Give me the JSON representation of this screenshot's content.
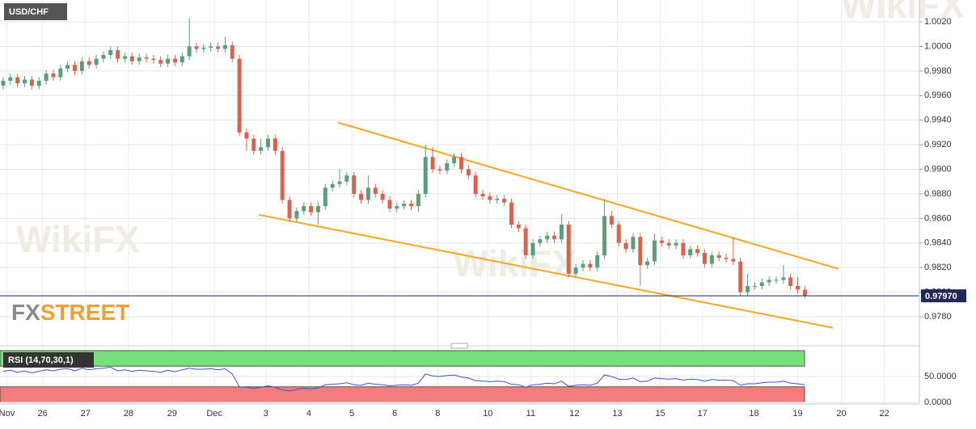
{
  "chart_data": [
    {
      "type": "candlestick",
      "title": "USD/CHF",
      "open": [
        0.9968,
        0.9972,
        0.9975,
        0.997,
        0.9973,
        0.9968,
        0.9972,
        0.9978,
        0.9975,
        0.9982,
        0.9985,
        0.998,
        0.9988,
        0.9985,
        0.999,
        0.9993,
        0.9997,
        0.999,
        0.9992,
        0.9988,
        0.9991,
        0.999,
        0.9989,
        0.9986,
        0.999,
        0.9987,
        0.9992,
        1.0,
        0.9998,
        0.9999,
        1.0,
        0.9998,
        1.0001,
        0.999,
        0.993,
        0.9925,
        0.9915,
        0.9918,
        0.9925,
        0.9915,
        0.9875,
        0.986,
        0.9866,
        0.987,
        0.9865,
        0.987,
        0.9885,
        0.9888,
        0.989,
        0.9895,
        0.988,
        0.9875,
        0.9885,
        0.988,
        0.9875,
        0.9868,
        0.987,
        0.9872,
        0.987,
        0.988,
        0.991,
        0.99,
        0.9899,
        0.9905,
        0.991,
        0.99,
        0.9895,
        0.988,
        0.9878,
        0.9875,
        0.9876,
        0.9873,
        0.9855,
        0.9852,
        0.983,
        0.984,
        0.9843,
        0.9846,
        0.9843,
        0.9855,
        0.9815,
        0.982,
        0.9823,
        0.982,
        0.983,
        0.9862,
        0.9855,
        0.984,
        0.9835,
        0.9845,
        0.9822,
        0.9825,
        0.9842,
        0.984,
        0.9838,
        0.984,
        0.983,
        0.9835,
        0.9832,
        0.9823,
        0.983,
        0.9828,
        0.9827,
        0.9825,
        0.98,
        0.9805,
        0.9805,
        0.9808,
        0.981,
        0.981,
        0.9812,
        0.9805,
        0.9802
      ],
      "high": [
        0.9975,
        0.9978,
        0.9978,
        0.9976,
        0.9976,
        0.9975,
        0.9981,
        0.9981,
        0.9985,
        0.9988,
        0.9988,
        0.9991,
        0.9991,
        0.9993,
        0.9996,
        1.0,
        1.0,
        0.9995,
        0.9995,
        0.9994,
        0.9994,
        0.9993,
        0.9992,
        0.9993,
        0.9993,
        0.9995,
        1.0023,
        1.0003,
        1.0002,
        1.0003,
        1.0003,
        1.0008,
        1.0004,
        0.9993,
        0.9933,
        0.9928,
        0.9925,
        0.9928,
        0.9928,
        0.9918,
        0.9878,
        0.9869,
        0.9873,
        0.9873,
        0.9873,
        0.9888,
        0.9891,
        0.99,
        0.9898,
        0.9898,
        0.9883,
        0.9895,
        0.9888,
        0.9883,
        0.9878,
        0.9873,
        0.9875,
        0.9875,
        0.9883,
        0.992,
        0.9918,
        0.9903,
        0.9908,
        0.9913,
        0.9913,
        0.9903,
        0.9898,
        0.9883,
        0.9881,
        0.9879,
        0.9879,
        0.9876,
        0.9858,
        0.9855,
        0.9843,
        0.9846,
        0.9849,
        0.9849,
        0.9863,
        0.9858,
        0.9823,
        0.9826,
        0.9826,
        0.9833,
        0.9876,
        0.9866,
        0.9858,
        0.9843,
        0.9848,
        0.9848,
        0.9828,
        0.9848,
        0.9845,
        0.9843,
        0.9843,
        0.9843,
        0.9838,
        0.9838,
        0.9835,
        0.9833,
        0.9833,
        0.9831,
        0.9845,
        0.9828,
        0.9815,
        0.9808,
        0.9811,
        0.9813,
        0.9813,
        0.9822,
        0.9815,
        0.9812,
        0.9805
      ],
      "low": [
        0.9965,
        0.9969,
        0.9967,
        0.9967,
        0.9965,
        0.9965,
        0.9969,
        0.9972,
        0.9972,
        0.9979,
        0.9977,
        0.9977,
        0.9982,
        0.9982,
        0.9987,
        0.999,
        0.9987,
        0.9987,
        0.9985,
        0.9985,
        0.9987,
        0.9986,
        0.9983,
        0.9983,
        0.9984,
        0.9984,
        0.9989,
        0.9995,
        0.9995,
        0.9996,
        0.9995,
        0.9995,
        0.9987,
        0.9927,
        0.9915,
        0.9912,
        0.9912,
        0.9915,
        0.9912,
        0.9872,
        0.9857,
        0.9857,
        0.9863,
        0.9862,
        0.9855,
        0.9867,
        0.9882,
        0.9885,
        0.9887,
        0.9877,
        0.9872,
        0.9872,
        0.9877,
        0.9872,
        0.9865,
        0.9865,
        0.9867,
        0.9867,
        0.9865,
        0.9877,
        0.9897,
        0.9896,
        0.9896,
        0.9902,
        0.9897,
        0.9892,
        0.9877,
        0.9875,
        0.9872,
        0.9872,
        0.987,
        0.9852,
        0.9849,
        0.9827,
        0.9827,
        0.9837,
        0.984,
        0.984,
        0.984,
        0.9812,
        0.9812,
        0.9817,
        0.9817,
        0.9817,
        0.9827,
        0.9852,
        0.9837,
        0.9832,
        0.9832,
        0.9805,
        0.9819,
        0.9822,
        0.9837,
        0.9835,
        0.9835,
        0.9827,
        0.9827,
        0.9829,
        0.982,
        0.982,
        0.9825,
        0.9824,
        0.9822,
        0.9797,
        0.9797,
        0.9802,
        0.9802,
        0.9805,
        0.9807,
        0.9807,
        0.9802,
        0.9799,
        0.9795
      ],
      "close": [
        0.9972,
        0.9975,
        0.997,
        0.9973,
        0.9968,
        0.9972,
        0.9978,
        0.9975,
        0.9982,
        0.9985,
        0.998,
        0.9988,
        0.9985,
        0.999,
        0.9993,
        0.9997,
        0.999,
        0.9992,
        0.9988,
        0.9991,
        0.999,
        0.9989,
        0.9986,
        0.999,
        0.9987,
        0.9992,
        1.0,
        0.9998,
        0.9999,
        1.0,
        0.9998,
        1.0001,
        0.999,
        0.993,
        0.9925,
        0.9915,
        0.9918,
        0.9925,
        0.9915,
        0.9875,
        0.986,
        0.9866,
        0.987,
        0.9865,
        0.987,
        0.9885,
        0.9888,
        0.989,
        0.9895,
        0.988,
        0.9875,
        0.9885,
        0.988,
        0.9875,
        0.9868,
        0.987,
        0.9872,
        0.987,
        0.988,
        0.991,
        0.99,
        0.9899,
        0.9905,
        0.991,
        0.99,
        0.9895,
        0.988,
        0.9878,
        0.9875,
        0.9876,
        0.9873,
        0.9855,
        0.9852,
        0.983,
        0.984,
        0.9843,
        0.9846,
        0.9843,
        0.9855,
        0.9815,
        0.982,
        0.9823,
        0.982,
        0.983,
        0.9862,
        0.9855,
        0.984,
        0.9835,
        0.9845,
        0.9822,
        0.9825,
        0.9842,
        0.984,
        0.9838,
        0.984,
        0.983,
        0.9835,
        0.9832,
        0.9823,
        0.983,
        0.9828,
        0.9827,
        0.9825,
        0.98,
        0.9805,
        0.9805,
        0.9808,
        0.981,
        0.981,
        0.9812,
        0.9805,
        0.9802,
        0.9797
      ],
      "up_color": "#5b9e7f",
      "down_color": "#d9634f",
      "xlim": [
        -0.45,
        128.0
      ],
      "xticks": [
        {
          "value": 0.5,
          "label": "Nov"
        },
        {
          "value": 5.5,
          "label": "26"
        },
        {
          "value": 11.5,
          "label": "27"
        },
        {
          "value": 17.5,
          "label": "28"
        },
        {
          "value": 23.6,
          "label": "29"
        },
        {
          "value": 29.5,
          "label": "Dec"
        },
        {
          "value": 36.7,
          "label": "3"
        },
        {
          "value": 42.7,
          "label": "4"
        },
        {
          "value": 48.7,
          "label": "5"
        },
        {
          "value": 54.7,
          "label": "6"
        },
        {
          "value": 60.7,
          "label": "8"
        },
        {
          "value": 67.7,
          "label": "10"
        },
        {
          "value": 73.7,
          "label": "11"
        },
        {
          "value": 79.8,
          "label": "12"
        },
        {
          "value": 85.8,
          "label": "13"
        },
        {
          "value": 91.8,
          "label": "15"
        },
        {
          "value": 97.7,
          "label": "17"
        },
        {
          "value": 104.9,
          "label": "18"
        },
        {
          "value": 111.0,
          "label": "19"
        },
        {
          "value": 117.1,
          "label": "20"
        },
        {
          "value": 123.1,
          "label": "22"
        }
      ],
      "ylim": [
        0.97583,
        1.00378
      ],
      "yticks": [
        {
          "value": 1.002,
          "label": "1.0020"
        },
        {
          "value": 1.0,
          "label": "1.0000"
        },
        {
          "value": 0.998,
          "label": "0.9980"
        },
        {
          "value": 0.996,
          "label": "0.9960"
        },
        {
          "value": 0.994,
          "label": "0.9940"
        },
        {
          "value": 0.992,
          "label": "0.9920"
        },
        {
          "value": 0.99,
          "label": "0.9900"
        },
        {
          "value": 0.988,
          "label": "0.9880"
        },
        {
          "value": 0.986,
          "label": "0.9860"
        },
        {
          "value": 0.984,
          "label": "0.9840"
        },
        {
          "value": 0.982,
          "label": "0.9820"
        },
        {
          "value": 0.98,
          "label": "0.9800"
        },
        {
          "value": 0.978,
          "label": "0.9780"
        }
      ],
      "grid": true,
      "last_price": {
        "value": 0.9797,
        "label": "0.97970"
      },
      "trendlines": [
        {
          "x": [
            46.8,
            116.7
          ],
          "y": [
            0.9938,
            0.9819
          ]
        },
        {
          "x": [
            35.7,
            115.9
          ],
          "y": [
            0.9863,
            0.9771
          ]
        }
      ],
      "trendline_color": "#f5a623",
      "logo_fx": "FX",
      "logo_street": "STREET",
      "watermark": "WikiFX"
    },
    {
      "type": "line",
      "title": "RSI (14,70,30,1)",
      "color": "#3a55c8",
      "values": [
        60,
        62,
        58,
        61,
        57,
        60,
        63,
        61,
        64,
        65,
        61,
        66,
        63,
        65,
        66,
        68,
        61,
        63,
        60,
        62,
        61,
        60,
        58,
        62,
        59,
        63,
        66,
        64,
        64,
        65,
        63,
        65,
        55,
        30,
        29,
        27,
        29,
        32,
        29,
        24,
        22,
        25,
        27,
        26,
        28,
        34,
        35,
        36,
        38,
        34,
        33,
        37,
        35,
        34,
        32,
        33,
        34,
        33,
        37,
        55,
        51,
        50,
        52,
        53,
        49,
        47,
        42,
        41,
        40,
        41,
        40,
        35,
        34,
        29,
        34,
        35,
        37,
        36,
        41,
        31,
        33,
        34,
        33,
        37,
        53,
        50,
        45,
        44,
        47,
        40,
        41,
        47,
        46,
        45,
        46,
        43,
        45,
        44,
        41,
        44,
        43,
        43,
        42,
        33,
        36,
        36,
        38,
        39,
        39,
        41,
        37,
        36,
        34
      ],
      "ylim": [
        0,
        100
      ],
      "yticks": [
        {
          "value": 50,
          "label": "50.0000"
        },
        {
          "value": 0,
          "label": "0.0000"
        }
      ],
      "upper_band": 70,
      "lower_band": 30,
      "upper_band_color": "#77e07a",
      "lower_band_color": "#f47c7c"
    }
  ]
}
